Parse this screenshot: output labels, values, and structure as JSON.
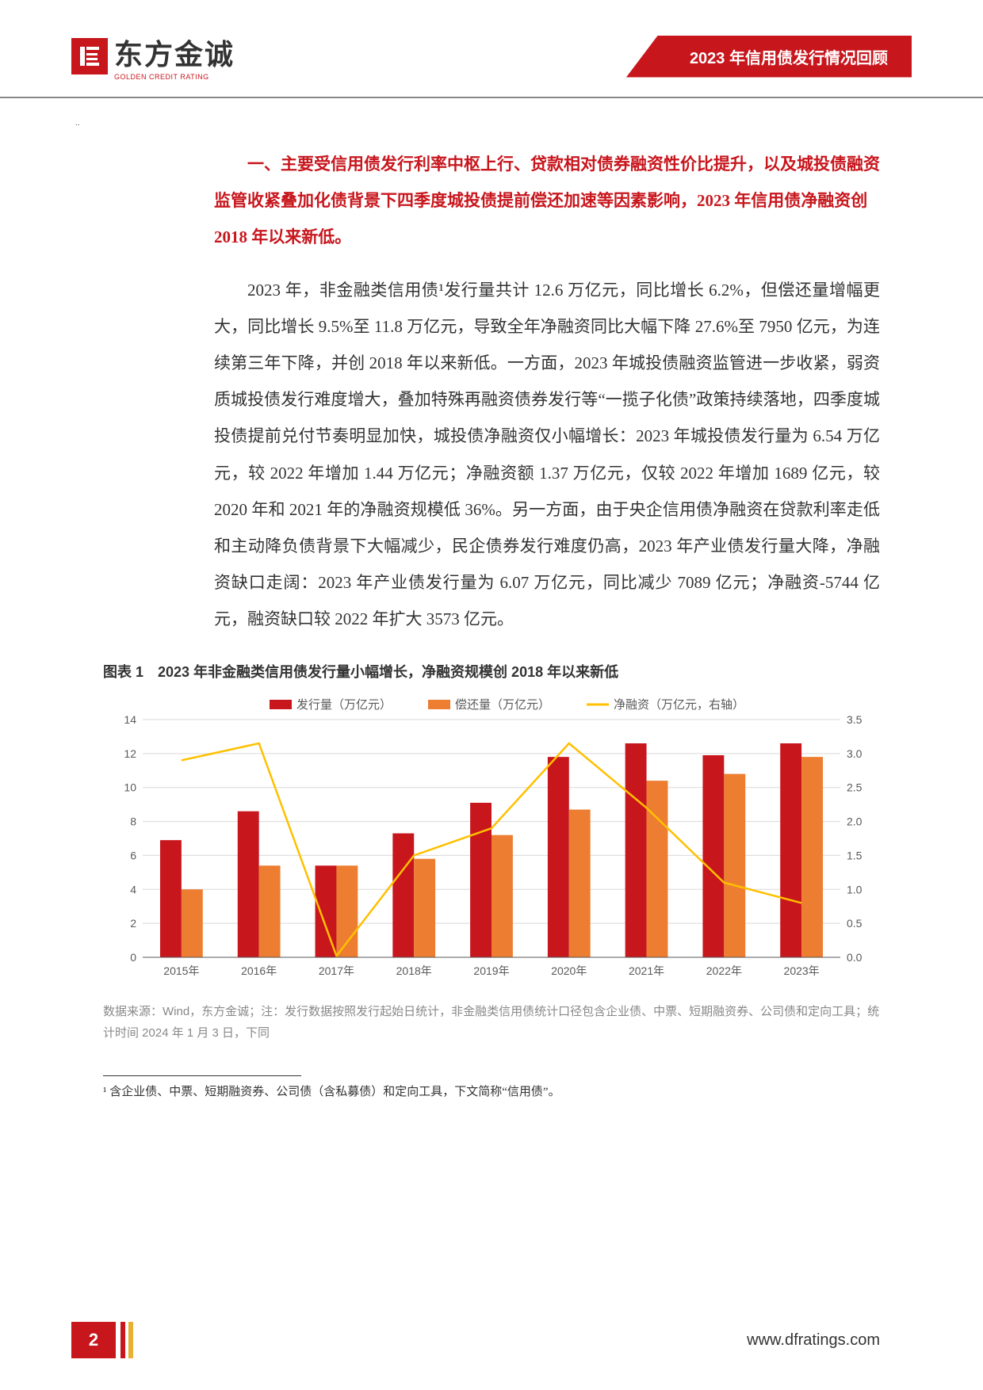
{
  "header": {
    "logo_cn": "东方金诚",
    "logo_en": "GOLDEN CREDIT RATING",
    "title_right": "2023 年信用债发行情况回顾"
  },
  "section_title": "一、主要受信用债发行利率中枢上行、贷款相对债券融资性价比提升，以及城投债融资监管收紧叠加化债背景下四季度城投债提前偿还加速等因素影响，2023 年信用债净融资创 2018 年以来新低。",
  "body_text": "2023 年，非金融类信用债¹发行量共计 12.6 万亿元，同比增长 6.2%，但偿还量增幅更大，同比增长 9.5%至 11.8 万亿元，导致全年净融资同比大幅下降 27.6%至 7950 亿元，为连续第三年下降，并创 2018 年以来新低。一方面，2023 年城投债融资监管进一步收紧，弱资质城投债发行难度增大，叠加特殊再融资债券发行等“一揽子化债”政策持续落地，四季度城投债提前兑付节奏明显加快，城投债净融资仅小幅增长：2023 年城投债发行量为 6.54 万亿元，较 2022 年增加 1.44 万亿元；净融资额 1.37 万亿元，仅较 2022 年增加 1689 亿元，较 2020 年和 2021 年的净融资规模低 36%。另一方面，由于央企信用债净融资在贷款利率走低和主动降负债背景下大幅减少，民企债券发行难度仍高，2023 年产业债发行量大降，净融资缺口走阔：2023 年产业债发行量为 6.07 万亿元，同比减少 7089 亿元；净融资-5744 亿元，融资缺口较 2022 年扩大 3573 亿元。",
  "chart": {
    "title": "图表 1　2023 年非金融类信用债发行量小幅增长，净融资规模创 2018 年以来新低",
    "type": "bar+line",
    "legend": {
      "issuance": "发行量（万亿元）",
      "repayment": "偿还量（万亿元）",
      "net": "净融资（万亿元，右轴）"
    },
    "categories": [
      "2015年",
      "2016年",
      "2017年",
      "2018年",
      "2019年",
      "2020年",
      "2021年",
      "2022年",
      "2023年"
    ],
    "issuance_values": [
      6.9,
      8.6,
      5.4,
      7.3,
      9.1,
      11.8,
      12.6,
      11.9,
      12.6
    ],
    "repayment_values": [
      4.0,
      5.4,
      5.4,
      5.8,
      7.2,
      8.7,
      10.4,
      10.8,
      11.8
    ],
    "net_values": [
      2.9,
      3.15,
      0.02,
      1.5,
      1.9,
      3.15,
      2.2,
      1.1,
      0.8
    ],
    "colors": {
      "issuance": "#c8161d",
      "repayment": "#ed7d31",
      "net_line": "#ffc000",
      "grid": "#d9d9d9",
      "axis_text": "#595959",
      "background": "#ffffff"
    },
    "y_left": {
      "min": 0,
      "max": 14,
      "step": 2
    },
    "y_right": {
      "min": 0.0,
      "max": 3.5,
      "step": 0.5
    },
    "bar_group_width": 0.55,
    "line_width": 2.5,
    "font_size_axis": 14,
    "font_size_legend": 15
  },
  "chart_note": "数据来源：Wind，东方金诚；注：发行数据按照发行起始日统计，非金融类信用债统计口径包含企业债、中票、短期融资券、公司债和定向工具；统计时间 2024 年 1 月 3 日，下同",
  "footnote": "¹ 含企业债、中票、短期融资券、公司债（含私募债）和定向工具，下文简称“信用债”。",
  "footer": {
    "page": "2",
    "url": "www.dfratings.com"
  }
}
